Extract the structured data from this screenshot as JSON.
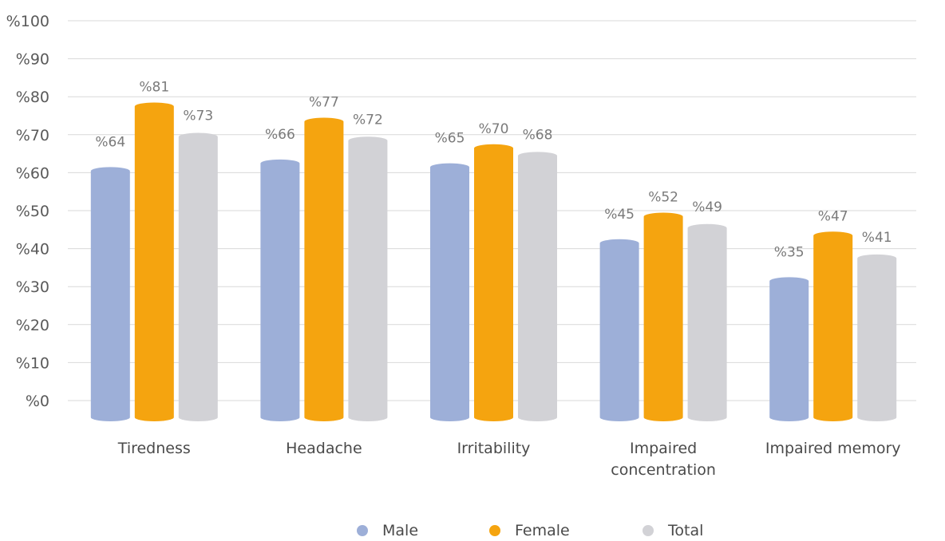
{
  "chart_data": {
    "type": "bar",
    "title": "",
    "xlabel": "",
    "ylabel": "",
    "ylim": [
      0,
      100
    ],
    "y_ticks": [
      "%0",
      "%10",
      "%20",
      "%30",
      "%40",
      "%50",
      "%60",
      "%70",
      "%80",
      "%90",
      "%100"
    ],
    "categories": [
      [
        "Tiredness"
      ],
      [
        "Headache"
      ],
      [
        "Irritability"
      ],
      [
        "Impaired",
        "concentration"
      ],
      [
        "Impaired memory"
      ]
    ],
    "series": [
      {
        "name": "Male",
        "color": "#9dafd8",
        "values": [
          64,
          66,
          65,
          45,
          35
        ],
        "labels": [
          "%64",
          "%66",
          "%65",
          "%45",
          "%35"
        ]
      },
      {
        "name": "Female",
        "color": "#f5a40f",
        "values": [
          81,
          77,
          70,
          52,
          47
        ],
        "labels": [
          "%81",
          "%77",
          "%70",
          "%52",
          "%47"
        ]
      },
      {
        "name": "Total",
        "color": "#d2d2d6",
        "values": [
          73,
          72,
          68,
          49,
          41
        ],
        "labels": [
          "%73",
          "%72",
          "%68",
          "%49",
          "%41"
        ]
      }
    ],
    "grid": true,
    "legend": "bottom-center"
  }
}
